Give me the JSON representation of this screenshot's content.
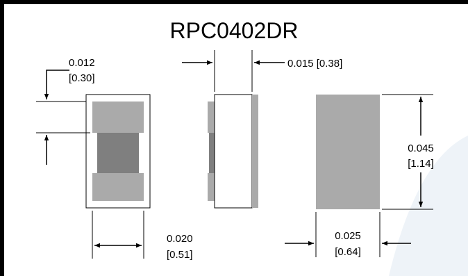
{
  "title": "RPC0402DR",
  "colors": {
    "terminal": "#aaaaaa",
    "body": "#7f7f7f",
    "side_body": "#aaaaaa",
    "frame": "#000000",
    "watermark": "#eef3f8"
  },
  "dimensions": {
    "terminal_length": {
      "inch": "0.012",
      "mm": "[0.30]"
    },
    "thickness": {
      "inch": "0.015 [0.38]"
    },
    "width_front": {
      "inch": "0.020",
      "mm": "[0.51]"
    },
    "length": {
      "inch": "0.045",
      "mm": "[1.14]"
    },
    "width_back": {
      "inch": "0.025",
      "mm": "[0.64]"
    }
  }
}
